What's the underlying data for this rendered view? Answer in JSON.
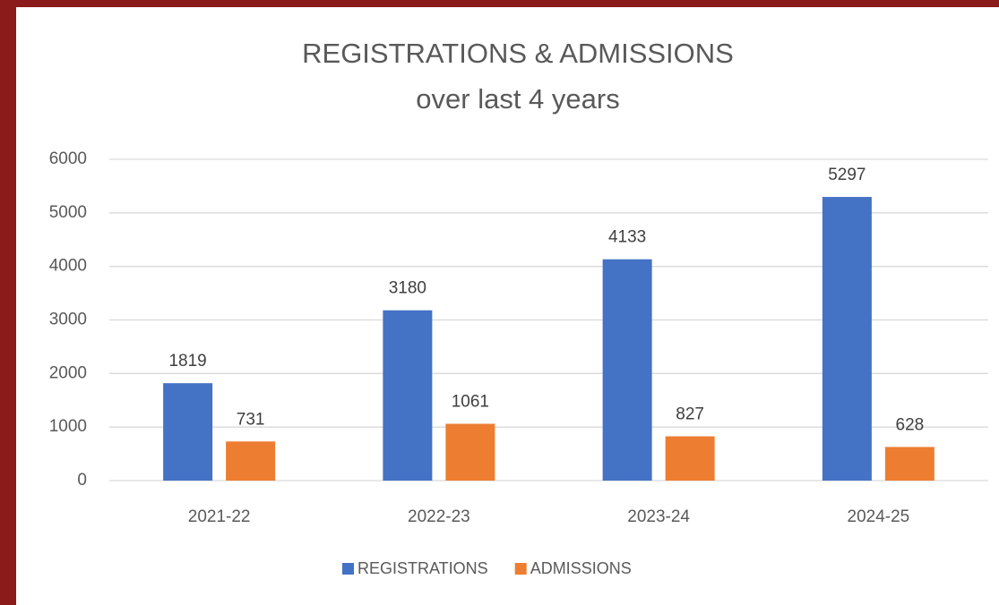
{
  "chart_data": {
    "type": "bar",
    "title": "REGISTRATIONS & ADMISSIONS",
    "subtitle": "over last 4 years",
    "categories": [
      "2021-22",
      "2022-23",
      "2023-24",
      "2024-25"
    ],
    "series": [
      {
        "name": "REGISTRATIONS",
        "color": "#4472c4",
        "values": [
          1819,
          3180,
          4133,
          5297
        ]
      },
      {
        "name": "ADMISSIONS",
        "color": "#ed7d31",
        "values": [
          731,
          1061,
          827,
          628
        ]
      }
    ],
    "ylim": [
      0,
      6000
    ],
    "yticks": [
      0,
      1000,
      2000,
      3000,
      4000,
      5000,
      6000
    ],
    "grid": true,
    "legend": "bottom"
  }
}
